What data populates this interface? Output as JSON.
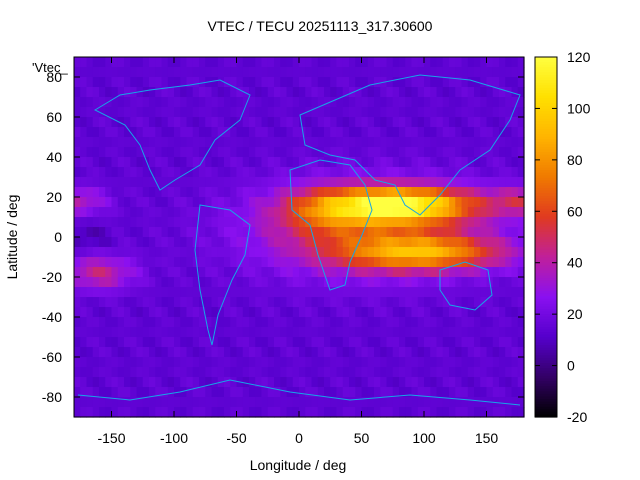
{
  "chart_data": {
    "type": "heatmap",
    "title": "VTEC / TECU 20251113_317.30600",
    "legend_label": "'Vtec_",
    "xlabel": "Longitude / deg",
    "ylabel": "Latitude / deg",
    "xlim": [
      -180,
      180
    ],
    "ylim": [
      -90,
      90
    ],
    "xticks": [
      -150,
      -100,
      -50,
      0,
      50,
      100,
      150
    ],
    "yticks": [
      -80,
      -60,
      -40,
      -20,
      0,
      20,
      40,
      60,
      80
    ],
    "colorbar": {
      "range": [
        -20,
        120
      ],
      "ticks": [
        -20,
        0,
        20,
        40,
        60,
        80,
        100,
        120
      ],
      "palette": [
        "#000000",
        "#330066",
        "#5500cc",
        "#8a10f0",
        "#c0209a",
        "#e03a20",
        "#f07a00",
        "#ffb400",
        "#ffe000",
        "#ffff40"
      ]
    },
    "grid_deg": 5,
    "background_vtec": 14,
    "features": [
      {
        "name": "equatorial anomaly north crest",
        "lon": 80,
        "lat": 15,
        "peak_vtec": 108
      },
      {
        "name": "equatorial anomaly south crest",
        "lon": 95,
        "lat": -8,
        "peak_vtec": 78
      },
      {
        "name": "dayside plateau",
        "lon": 60,
        "lat": 5,
        "peak_vtec": 60
      },
      {
        "name": "east Pacific north band",
        "lon": -170,
        "lat": 18,
        "peak_vtec": 42
      },
      {
        "name": "east Pacific south band",
        "lon": -160,
        "lat": -18,
        "peak_vtec": 45
      },
      {
        "name": "west Pacific depletion",
        "lon": -170,
        "lat": 0,
        "peak_vtec": 10
      }
    ]
  }
}
